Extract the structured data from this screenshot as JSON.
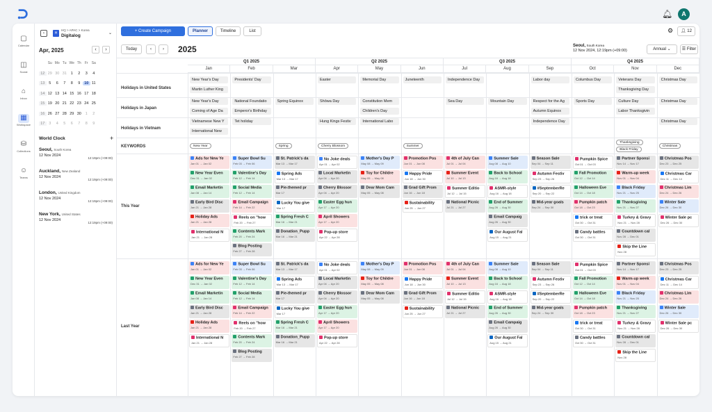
{
  "app": {
    "avatar_letter": "A"
  },
  "rail": [
    {
      "label": "Calendar",
      "icon": "calendar-icon"
    },
    {
      "label": "Social",
      "icon": "social-icon"
    },
    {
      "label": "Inbox",
      "icon": "inbox-icon"
    },
    {
      "label": "Workspace",
      "icon": "workspace-icon",
      "active": true
    },
    {
      "label": "Collections",
      "icon": "collections-icon"
    },
    {
      "label": "Teams",
      "icon": "teams-icon"
    }
  ],
  "workspace": {
    "path": "HQ > APAC > Korea",
    "name": "Digitalog"
  },
  "mini_cal": {
    "title": "Apr, 2025",
    "days": [
      "Su",
      "Mo",
      "Tu",
      "We",
      "Th",
      "Fr",
      "Sa"
    ],
    "weeks": [
      [
        "12",
        "29",
        "30",
        "31",
        "1",
        "2",
        "3",
        "4"
      ],
      [
        "13",
        "5",
        "6",
        "7",
        "8",
        "9",
        "10",
        "11"
      ],
      [
        "14",
        "12",
        "13",
        "14",
        "15",
        "16",
        "17",
        "18"
      ],
      [
        "15",
        "19",
        "20",
        "21",
        "22",
        "23",
        "24",
        "25"
      ],
      [
        "16",
        "26",
        "27",
        "28",
        "29",
        "30",
        "1",
        "2"
      ],
      [
        "17",
        "3",
        "4",
        "5",
        "6",
        "7",
        "8",
        "9"
      ]
    ]
  },
  "world_clock": {
    "title": "World Clock",
    "items": [
      {
        "city": "Seoul,",
        "country": "South Korea",
        "date": "12 Nov 2024",
        "time": "12:19pm (+09:00)"
      },
      {
        "city": "Auckland,",
        "country": "New Zealand",
        "date": "12 Nov 2024",
        "time": "12:19pm (+09:00)"
      },
      {
        "city": "London,",
        "country": "United Kingdom",
        "date": "12 Nov 2024",
        "time": "12:19pm (+09:00)"
      },
      {
        "city": "New York,",
        "country": "United States",
        "date": "12 Nov 2024",
        "time": "12:19pm (+09:00)"
      }
    ]
  },
  "toolbar": {
    "create": "+ Create Campaign",
    "planner": "Planner",
    "timeline": "Timeline",
    "list": "List",
    "today": "Today",
    "year": "2025",
    "tz_city": "Seoul,",
    "tz_country": "South Korea",
    "tz_time": "12 Nov 2024, 12:19pm (+09:00)",
    "view": "Annual",
    "filter": "Filter",
    "members": "12"
  },
  "quarters": [
    "Q1  2025",
    "Q2  2025",
    "Q3  2025",
    "Q4  2025"
  ],
  "months": [
    "Jan",
    "Feb",
    "Mar",
    "Apr",
    "May",
    "Jun",
    "Jul",
    "Aug",
    "Sep",
    "Oct",
    "Nov",
    "Dec"
  ],
  "row_labels": {
    "us": "Holidays in United States",
    "jp": "Holidays in Japan",
    "vn": "Holidays in Vietnam",
    "kw": "KEYWORDS",
    "ty": "This Year",
    "ly": "Last Year"
  },
  "holidays": [
    {
      "m": 0,
      "r": 0,
      "t": "New Year's Day"
    },
    {
      "m": 0,
      "r": 1,
      "t": "Martin Luther King"
    },
    {
      "m": 1,
      "r": 0,
      "t": "Presidents' Day"
    },
    {
      "m": 3,
      "r": 0,
      "t": "Easter"
    },
    {
      "m": 4,
      "r": 0,
      "t": "Memorial Day"
    },
    {
      "m": 5,
      "r": 0,
      "t": "Juneteenth"
    },
    {
      "m": 6,
      "r": 0,
      "t": "Independence Day"
    },
    {
      "m": 8,
      "r": 0,
      "t": "Labor day"
    },
    {
      "m": 9,
      "r": 0,
      "t": "Columbus Day"
    },
    {
      "m": 10,
      "r": 0,
      "t": "Veterans Day"
    },
    {
      "m": 10,
      "r": 1,
      "t": "Thanksgiving Day"
    },
    {
      "m": 11,
      "r": 0,
      "t": "Christmas Day"
    },
    {
      "m": 0,
      "r": 2,
      "t": "New Year's Day"
    },
    {
      "m": 0,
      "r": 3,
      "t": "Coming of Age Da"
    },
    {
      "m": 1,
      "r": 2,
      "t": "National Foundatio"
    },
    {
      "m": 1,
      "r": 3,
      "t": "Emperor's Birthday"
    },
    {
      "m": 2,
      "r": 2,
      "t": "Spring Equinox"
    },
    {
      "m": 3,
      "r": 2,
      "t": "Shōwa Day"
    },
    {
      "m": 4,
      "r": 2,
      "t": "Constitution Mem"
    },
    {
      "m": 4,
      "r": 3,
      "t": "Children's Day"
    },
    {
      "m": 6,
      "r": 2,
      "t": "Sea Day"
    },
    {
      "m": 7,
      "r": 2,
      "t": "Mountain Day"
    },
    {
      "m": 8,
      "r": 2,
      "t": "Respect for the Ag"
    },
    {
      "m": 8,
      "r": 3,
      "t": "Autumn Equinox"
    },
    {
      "m": 9,
      "r": 2,
      "t": "Sports Day"
    },
    {
      "m": 10,
      "r": 2,
      "t": "Culture Day"
    },
    {
      "m": 10,
      "r": 3,
      "t": "Labor Thanksgivin"
    },
    {
      "m": 11,
      "r": 2,
      "t": "Christmas Day"
    },
    {
      "m": 0,
      "r": 4,
      "t": "Vietnamese New Y"
    },
    {
      "m": 0,
      "r": 5,
      "t": "International New"
    },
    {
      "m": 1,
      "r": 4,
      "t": "Tet holiday"
    },
    {
      "m": 3,
      "r": 4,
      "t": "Hung Kings Festiv"
    },
    {
      "m": 4,
      "r": 4,
      "t": "International Labo"
    },
    {
      "m": 8,
      "r": 4,
      "t": "Independence Day"
    },
    {
      "m": 11,
      "r": 4,
      "t": "Christmas Day"
    }
  ],
  "keywords": [
    {
      "m": 0,
      "t": "New Year",
      "dy": 0
    },
    {
      "m": 2,
      "t": "Spring",
      "dy": 0
    },
    {
      "m": 3,
      "t": "Cherry Blossom",
      "dy": 0
    },
    {
      "m": 5,
      "t": "Summer",
      "dy": 0
    },
    {
      "m": 10,
      "t": "Thanksgiving",
      "dy": -5
    },
    {
      "m": 10,
      "t": "Black Friday",
      "dy": 5
    },
    {
      "m": 11,
      "t": "Christmas",
      "dy": 0
    }
  ],
  "campaigns": [
    [
      {
        "t": "Ads for New Ye",
        "d": "Jan 01 → Jan 02",
        "c": "red",
        "i": "ad"
      },
      {
        "t": "New Year Even",
        "d": "Dec 31 → Jan 02",
        "c": "green",
        "i": "mail"
      },
      {
        "t": "Email Marketin",
        "d": "Jan 08 → Jan 14",
        "c": "green",
        "i": "mail"
      },
      {
        "t": "Early Bird Disc",
        "d": "Jan 21 → Jan 28",
        "c": "gray",
        "i": "blog"
      },
      {
        "t": "Holiday Ads",
        "d": "Jan 21 → Jan 28",
        "c": "red",
        "i": "yt"
      },
      {
        "t": "International N",
        "d": "Jan 21 → Jan 28",
        "c": "white",
        "i": "ig"
      }
    ],
    [
      {
        "t": "Super Bowl Su",
        "d": "Feb 03 → Feb 06",
        "c": "blue",
        "i": "ad"
      },
      {
        "t": "Valentine's Day",
        "d": "Feb 12 → Feb 14",
        "c": "green",
        "i": "mail"
      },
      {
        "t": "Social Media",
        "d": "Feb 12 → Feb 14",
        "c": "green",
        "i": "mail"
      },
      {
        "t": "Email Campaign",
        "d": "Feb 14 → Feb 22",
        "c": "red",
        "i": "ig"
      },
      {
        "t": "Reels on \"how",
        "d": "Feb 20 → Feb 27",
        "c": "white",
        "i": "ig"
      },
      {
        "t": "Contents Mark",
        "d": "Feb 20 → Feb 24",
        "c": "green",
        "i": "mail"
      },
      {
        "t": "Blog Posting",
        "d": "Feb 27 → Feb 28",
        "c": "gray",
        "i": "blog"
      }
    ],
    [
      {
        "t": "St. Patrick's da",
        "d": "Mar 13 → Mar 17",
        "c": "gray",
        "i": "blog"
      },
      {
        "t": "Spring Ads",
        "d": "Mar 13 → Mar 17",
        "c": "white",
        "i": "fb"
      },
      {
        "t": "Pie-themed pr",
        "d": "Mar 17",
        "c": "gray",
        "i": "blog"
      },
      {
        "t": "Lucky You give",
        "d": "Mar 17",
        "c": "white",
        "i": "li"
      },
      {
        "t": "Spring Fresh C",
        "d": "Mar 16 → Mar 21",
        "c": "green",
        "i": "mail"
      },
      {
        "t": "Donation_Pupp",
        "d": "Mar 16 → Mar 21",
        "c": "gray",
        "i": "blog"
      }
    ],
    [
      {
        "t": "No Joke deals",
        "d": "Apr 01 → Apr 02",
        "c": "white",
        "i": "ad"
      },
      {
        "t": "Local Marketin",
        "d": "Apr 04 → Apr 20",
        "c": "gray",
        "i": "blog"
      },
      {
        "t": "Cherry Blossor",
        "d": "Apr 04 → Apr 20",
        "c": "gray",
        "i": "blog"
      },
      {
        "t": "Easter Egg hun",
        "d": "Apr 17 → Apr 20",
        "c": "green",
        "i": "mail"
      },
      {
        "t": "April Showers",
        "d": "Apr 17 → Apr 20",
        "c": "red",
        "i": "ig"
      },
      {
        "t": "Pop-up store",
        "d": "Apr 22 → Apr 28",
        "c": "white",
        "i": "ig"
      }
    ],
    [
      {
        "t": "Mother's Day P",
        "d": "May 08 → May 09",
        "c": "blue",
        "i": "ad"
      },
      {
        "t": "Toy for Childre",
        "d": "May 05 → May 08",
        "c": "red",
        "i": "yt"
      },
      {
        "t": "Dear Mom Cam",
        "d": "May 05 → May 08",
        "c": "gray",
        "i": "blog"
      }
    ],
    [
      {
        "t": "Promotion Pos",
        "d": "Jun 01 → Jun 08",
        "c": "red",
        "i": "ig"
      },
      {
        "t": "Happy Pride",
        "d": "Jun 18 → Jun 30",
        "c": "white",
        "i": "fb"
      },
      {
        "t": "Grad Gift Prom",
        "d": "Jun 16 → Jun 18",
        "c": "gray",
        "i": "blog"
      },
      {
        "t": "Sustainability",
        "d": "Jun 25 → Jun 27",
        "c": "white",
        "i": "yt"
      }
    ],
    [
      {
        "t": "4th of July Can",
        "d": "Jul 01 → Jul 04",
        "c": "red",
        "i": "ig"
      },
      {
        "t": "Summer Event",
        "d": "Jul 10 → Jul 13",
        "c": "red",
        "i": "yt"
      },
      {
        "t": "Summer Editio",
        "d": "Jul 12 → Jul 15",
        "c": "white",
        "i": "ig"
      },
      {
        "t": "National Picnic",
        "d": "Jul 21 → Jul 27",
        "c": "gray",
        "i": "blog"
      }
    ],
    [
      {
        "t": "Summer Sale",
        "d": "Aug 08 → Aug 10",
        "c": "blue",
        "i": "ad"
      },
      {
        "t": "Back to School",
        "d": "Aug 16 → Aug 18",
        "c": "green",
        "i": "mail"
      },
      {
        "t": "ASMR-style",
        "d": "Aug 16 → Aug 18",
        "c": "white",
        "i": "ig"
      },
      {
        "t": "End of Summer",
        "d": "Aug 26 → Aug 30",
        "c": "green",
        "i": "mail"
      },
      {
        "t": "Email Campaig",
        "d": "Aug 26 → Aug 30",
        "c": "gray",
        "i": "blog"
      },
      {
        "t": "Our August Fal",
        "d": "Aug 15 → Aug 21",
        "c": "white",
        "i": "li"
      }
    ],
    [
      {
        "t": "Season Sale",
        "d": "Sep 04 → Sep 11",
        "c": "gray",
        "i": "blog"
      },
      {
        "t": "Autumn Festiv",
        "d": "Sep 23 → Sep 26",
        "c": "white",
        "i": "ig"
      },
      {
        "t": "#SeptemberRe",
        "d": "Sep 20 → Sep 22",
        "c": "white",
        "i": "li"
      },
      {
        "t": "Mid-year goals",
        "d": "Sep 24 → Sep 30",
        "c": "gray",
        "i": "blog"
      }
    ],
    [
      {
        "t": "Pumpkin Spice",
        "d": "Oct 01 → Oct 03",
        "c": "white",
        "i": "ig"
      },
      {
        "t": "Fall Promotion",
        "d": "Oct 12 → Oct 14",
        "c": "green",
        "i": "mail"
      },
      {
        "t": "Halloween Eve",
        "d": "Oct 14 → Oct 18",
        "c": "green",
        "i": "mail"
      },
      {
        "t": "Pumpkin patch",
        "d": "Oct 18 → Oct 23",
        "c": "red",
        "i": "ig"
      },
      {
        "t": "trick or treat",
        "d": "Oct 30 → Oct 31",
        "c": "white",
        "i": "fb"
      },
      {
        "t": "Candy battles",
        "d": "Oct 30 → Oct 31",
        "c": "white",
        "i": "blog"
      }
    ],
    [
      {
        "t": "Partner Sponsi",
        "d": "Nov 14 → Nov 17",
        "c": "gray",
        "i": "blog"
      },
      {
        "t": "Warm-up week",
        "d": "Nov 01 → Nov 04",
        "c": "red",
        "i": "yt"
      },
      {
        "t": "Black Friday",
        "d": "Nov 21 → Nov 25",
        "c": "blue",
        "i": "ad"
      },
      {
        "t": "Thanksgiving",
        "d": "Nov 21 → Nov 27",
        "c": "green",
        "i": "mail"
      },
      {
        "t": "Turkey & Gravy",
        "d": "Nov 21 → Nov 28",
        "c": "white",
        "i": "ig"
      },
      {
        "t": "Countdown cal",
        "d": "Nov 28 → Dec 01",
        "c": "gray",
        "i": "blog"
      },
      {
        "t": "Skip the Line",
        "d": "Nov 28",
        "c": "white",
        "i": "yt"
      }
    ],
    [
      {
        "t": "Christmas Pos",
        "d": "Dec 23 → Dec 25",
        "c": "gray",
        "i": "blog"
      },
      {
        "t": "Christmas Car",
        "d": "Dec 11 → Dec 14",
        "c": "white",
        "i": "fb"
      },
      {
        "t": "Christmas Lim",
        "d": "Dec 24 → Dec 26",
        "c": "red",
        "i": "ig"
      },
      {
        "t": "Winter Sale",
        "d": "Dec 26 → Dec 30",
        "c": "blue",
        "i": "ad"
      },
      {
        "t": "Winter Sale pc",
        "d": "Dec 26 → Dec 30",
        "c": "white",
        "i": "ig"
      }
    ]
  ]
}
